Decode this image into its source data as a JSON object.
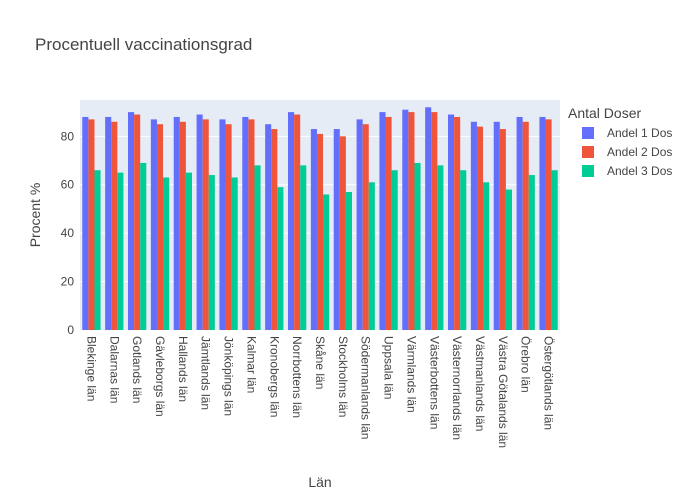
{
  "chart_data": {
    "type": "bar",
    "title": "Procentuell vaccinationsgrad",
    "xlabel": "Län",
    "ylabel": "Procent %",
    "ylim": [
      0,
      95
    ],
    "yticks": [
      0,
      20,
      40,
      60,
      80
    ],
    "grid": true,
    "legend": {
      "title": "Antal Doser",
      "placement": "top-right"
    },
    "categories": [
      "Blekinge län",
      "Dalarnas län",
      "Gotlands län",
      "Gävleborgs län",
      "Hallands län",
      "Jämtlands län",
      "Jönköpings län",
      "Kalmar län",
      "Kronobergs län",
      "Norrbottens län",
      "Skåne län",
      "Stockholms län",
      "Södermanlands län",
      "Uppsala län",
      "Värmlands län",
      "Västerbottens län",
      "Västernorrlands län",
      "Västmanlands län",
      "Västra Götalands län",
      "Örebro län",
      "Östergötlands län"
    ],
    "series": [
      {
        "name": "Andel 1 Dos",
        "color": "#636efa",
        "values": [
          88,
          88,
          90,
          87,
          88,
          89,
          87,
          88,
          85,
          90,
          83,
          83,
          87,
          90,
          91,
          92,
          89,
          86,
          86,
          88,
          88
        ]
      },
      {
        "name": "Andel 2 Dos",
        "color": "#ef553b",
        "values": [
          87,
          86,
          89,
          85,
          86,
          87,
          85,
          87,
          83,
          89,
          81,
          80,
          85,
          88,
          90,
          90,
          88,
          84,
          83,
          86,
          87
        ]
      },
      {
        "name": "Andel 3 Dos",
        "color": "#00cc96",
        "values": [
          66,
          65,
          69,
          63,
          65,
          64,
          63,
          68,
          59,
          68,
          56,
          57,
          61,
          66,
          69,
          68,
          66,
          61,
          58,
          64,
          66
        ]
      }
    ]
  }
}
